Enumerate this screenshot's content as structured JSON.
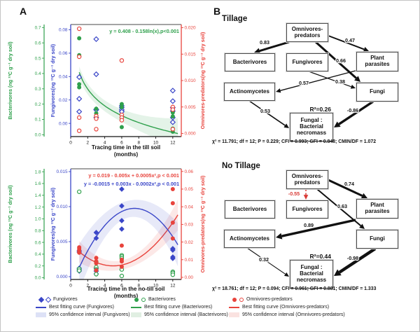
{
  "panel_a": {
    "label": "A"
  },
  "panel_b": {
    "label": "B",
    "diagrams": [
      {
        "id": "tillage",
        "title": "Tillage",
        "r2": "R²=0.26",
        "fit": "χ² = 11.791; df = 12; P = 0.229; CFI = 0.993; GFI = 0.848; CMIN/DF = 1.072",
        "nodes": {
          "omnivores_predators": {
            "label": "Omnivores-\npredators"
          },
          "bacterivores": {
            "label": "Bacterivores"
          },
          "fungivores": {
            "label": "Fungivores"
          },
          "plant_parasites": {
            "label": "Plant\nparasites"
          },
          "actinomycetes": {
            "label": "Actinomycetes"
          },
          "fungi": {
            "label": "Fungi"
          },
          "necromass": {
            "label": "Fungal :\nBacterial\nnecromass"
          }
        },
        "edges": [
          {
            "from": "omnivores_predators",
            "to": "bacterivores",
            "label": "0.83",
            "w": 3,
            "color": "#111111",
            "dashed": false
          },
          {
            "from": "omnivores_predators",
            "to": "plant_parasites",
            "label": "0.47",
            "w": 2,
            "color": "#111111",
            "dashed": false
          },
          {
            "from": "omnivores_predators",
            "to": "fungi",
            "label": "0.66",
            "w": 3,
            "color": "#111111",
            "dashed": false
          },
          {
            "from": "fungivores",
            "to": "fungi",
            "label": "0.38",
            "w": 1.2,
            "color": "#111111",
            "dashed": false
          },
          {
            "from": "plant_parasites",
            "to": "actinomycetes",
            "label": "0.57",
            "w": 1.4,
            "color": "#111111",
            "dashed": false
          },
          {
            "from": "actinomycetes",
            "to": "necromass",
            "label": "0.53",
            "w": 1.6,
            "color": "#111111",
            "dashed": false
          },
          {
            "from": "fungi",
            "to": "necromass",
            "label": "-0.86",
            "w": 3.4,
            "color": "#111111",
            "dashed": false
          }
        ]
      },
      {
        "id": "notillage",
        "title": "No Tillage",
        "r2": "R²=0.44",
        "fit": "χ² = 18.761; df = 12; P = 0.094; CFI = 0.961; GFI = 0.881; CMIN/DF = 1.333",
        "nodes": {
          "omnivores_predators": {
            "label": "Omnivores-\npredators"
          },
          "bacterivores": {
            "label": "Bacterivores"
          },
          "fungivores": {
            "label": "Fungivores"
          },
          "plant_parasites": {
            "label": "Plant\nparasites"
          },
          "actinomycetes": {
            "label": "Actinomycetes"
          },
          "fungi": {
            "label": "Fungi"
          },
          "necromass": {
            "label": "Fungal :\nBacterial\nnecromass"
          }
        },
        "edges": [
          {
            "from": "omnivores_predators",
            "to": "fungivores",
            "label": "-0.55",
            "w": 1.5,
            "color": "#d93a35",
            "dashed": true
          },
          {
            "from": "omnivores_predators",
            "to": "plant_parasites",
            "label": "0.74",
            "w": 3,
            "color": "#111111",
            "dashed": false
          },
          {
            "from": "omnivores_predators",
            "to": "fungi",
            "label": "0.63",
            "w": 2,
            "color": "#111111",
            "dashed": false
          },
          {
            "from": "plant_parasites",
            "to": "actinomycetes",
            "label": "0.89",
            "w": 3.4,
            "color": "#111111",
            "dashed": false
          },
          {
            "from": "actinomycetes",
            "to": "necromass",
            "label": "0.32",
            "w": 1.1,
            "color": "#111111",
            "dashed": false
          },
          {
            "from": "fungi",
            "to": "necromass",
            "label": "-0.98",
            "w": 4.4,
            "color": "#111111",
            "dashed": false
          }
        ]
      }
    ]
  },
  "chart_data": [
    {
      "type": "scatter",
      "equations": [
        {
          "text": "y = 0.408 - 0.158ln(x),p<0.001",
          "color": "#2fa04c"
        }
      ],
      "xlabel": "Tracing time in the till soil",
      "months_label": "(months)",
      "x_ticks": [
        "0",
        "2",
        "4",
        "6",
        "8",
        "10",
        "12"
      ],
      "x_range": [
        0,
        13
      ],
      "axes": {
        "bacterivores": {
          "label": "Bacterivores (ng ¹³C g⁻¹ dry soil)",
          "color": "#2fa04c",
          "ticks": [
            "0.0",
            "0.1",
            "0.2",
            "0.3",
            "0.4",
            "0.5",
            "0.6",
            "0.7"
          ],
          "range": [
            -0.012,
            0.72
          ]
        },
        "fungivores": {
          "label": "Fungivores(ng ¹³C g⁻¹ dry soil)",
          "color": "#3a46c8",
          "ticks": [
            "0.00",
            "0.02",
            "0.04",
            "0.06",
            "0.08"
          ],
          "range": [
            -0.0113,
            0.0845
          ]
        },
        "omnivores": {
          "label": "Omnivores-predators(ng ¹³C g⁻¹ dry soil)",
          "color": "#e8433c",
          "ticks": [
            "0.000",
            "0.005",
            "0.010",
            "0.015",
            "0.020"
          ],
          "range": [
            -0.0006,
            0.0206
          ]
        }
      },
      "series": [
        {
          "name": "Fungivores",
          "axis": "fungivores",
          "marker": "diamond",
          "fill": "open",
          "color": "#3a46c8",
          "points": [
            [
              1,
              0.0395
            ],
            [
              1,
              0.021
            ],
            [
              1,
              0.01
            ],
            [
              3,
              0.072
            ],
            [
              3,
              0.042
            ],
            [
              3,
              0.012
            ],
            [
              3,
              0.0115
            ],
            [
              3,
              0.005
            ],
            [
              6,
              0.015
            ],
            [
              6,
              0.0135
            ],
            [
              6,
              0.0115
            ],
            [
              6,
              0.01
            ],
            [
              12,
              0.028
            ],
            [
              12,
              0.019
            ],
            [
              12,
              0.0135
            ],
            [
              12,
              0.0105
            ],
            [
              12,
              0.005
            ],
            [
              12,
              0.001
            ]
          ]
        },
        {
          "name": "Bacterivores",
          "axis": "bacterivores",
          "marker": "circle",
          "fill": "filled",
          "color": "#2fa04c",
          "points": [
            [
              1,
              0.63
            ],
            [
              1,
              0.52
            ],
            [
              1,
              0.51
            ],
            [
              1,
              0.33
            ],
            [
              1,
              0.31
            ],
            [
              3,
              0.17
            ],
            [
              3,
              0.14
            ],
            [
              3,
              0.12
            ],
            [
              6,
              0.2
            ],
            [
              6,
              0.18
            ],
            [
              6,
              0.11
            ],
            [
              6,
              0.05
            ],
            [
              12,
              0.145
            ],
            [
              12,
              0.12
            ],
            [
              12,
              0.04
            ],
            [
              12,
              0.02
            ]
          ]
        },
        {
          "name": "Omnivores-predators",
          "axis": "omnivores",
          "marker": "circle",
          "fill": "open",
          "color": "#e8433c",
          "points": [
            [
              1,
              0.0198
            ],
            [
              1,
              0.0145
            ],
            [
              1,
              0.003
            ],
            [
              1,
              0.0005
            ],
            [
              3,
              0.0033
            ],
            [
              3,
              0.0028
            ],
            [
              3,
              0.0008
            ],
            [
              6,
              0.0138
            ],
            [
              6,
              0.0035
            ],
            [
              6,
              0.003
            ],
            [
              6,
              0.0025
            ],
            [
              12,
              0.005
            ],
            [
              12,
              0.0045
            ],
            [
              12,
              0.0008
            ]
          ]
        }
      ],
      "curves": [
        {
          "axis": "bacterivores",
          "type": "log",
          "a": 0.408,
          "b": -0.158,
          "c": 0,
          "color": "#2fa04c",
          "band_color": "rgba(47,160,76,0.13)",
          "bw": [
            0.035,
            0.0007,
            3
          ]
        }
      ]
    },
    {
      "type": "scatter",
      "equations": [
        {
          "text": "y = 0.019 - 0.005x + 0.0005x²,p < 0.001",
          "color": "#e8433c"
        },
        {
          "text": "y = -0.0015 + 0.003x - 0.0002x²,p < 0.001",
          "color": "#3a46c8"
        }
      ],
      "xlabel": "Tracing time in the no-till soil",
      "months_label": "(months)",
      "x_ticks": [
        "0",
        "2",
        "4",
        "6",
        "8",
        "10",
        "12"
      ],
      "x_range": [
        0,
        13
      ],
      "axes": {
        "bacterivores": {
          "label": "Bacterivores (ng ¹³C g⁻¹ dry soil)",
          "color": "#2fa04c",
          "ticks": [
            "0.0",
            "0.2",
            "0.4",
            "0.6",
            "0.8",
            "1.0",
            "1.2",
            "1.4",
            "1.6",
            "1.8"
          ],
          "range": [
            -0.03,
            1.85
          ]
        },
        "fungivores": {
          "label": "Fungivores(ng ¹³C g⁻¹ dry soil)",
          "color": "#3a46c8",
          "ticks": [
            "0.000",
            "0.005",
            "0.010",
            "0.015"
          ],
          "range": [
            -0.0004,
            0.0154
          ]
        },
        "omnivores": {
          "label": "Omnivores-predators(ng ¹³C g⁻¹ dry soil)",
          "color": "#e8433c",
          "ticks": [
            "0.00",
            "0.01",
            "0.02",
            "0.03",
            "0.04",
            "0.05",
            "0.06"
          ],
          "range": [
            -0.0012,
            0.0615
          ]
        }
      },
      "series": [
        {
          "name": "Fungivores",
          "axis": "fungivores",
          "marker": "diamond",
          "fill": "filled",
          "color": "#3a46c8",
          "points": [
            [
              1,
              0.0037
            ],
            [
              1,
              0.0035
            ],
            [
              1,
              0.0012
            ],
            [
              1,
              0.001
            ],
            [
              1,
              0.0008
            ],
            [
              3,
              0.0063
            ],
            [
              3,
              0.0055
            ],
            [
              3,
              0.0012
            ],
            [
              3,
              0.0008
            ],
            [
              3,
              0.0004
            ],
            [
              6,
              0.0125
            ],
            [
              6,
              0.0101
            ],
            [
              6,
              0.008
            ],
            [
              6,
              0.0068
            ],
            [
              12,
              0.004
            ],
            [
              12,
              0.0038
            ],
            [
              12,
              0.0028
            ],
            [
              12,
              0.0026
            ]
          ]
        },
        {
          "name": "Bacterivores",
          "axis": "bacterivores",
          "marker": "circle",
          "fill": "open",
          "color": "#2fa04c",
          "points": [
            [
              1,
              1.46
            ],
            [
              1,
              0.15
            ],
            [
              1,
              0.12
            ],
            [
              3,
              0.27
            ],
            [
              3,
              0.18
            ],
            [
              3,
              0.14
            ],
            [
              3,
              0.06
            ],
            [
              6,
              0.38
            ],
            [
              6,
              0.36
            ],
            [
              6,
              0.33
            ],
            [
              6,
              0.14
            ],
            [
              6,
              0.03
            ],
            [
              12,
              0.1
            ],
            [
              12,
              0.08
            ],
            [
              12,
              0.05
            ]
          ]
        },
        {
          "name": "Omnivores-predators",
          "axis": "omnivores",
          "marker": "circle",
          "fill": "filled",
          "color": "#e8433c",
          "points": [
            [
              1,
              0.017
            ],
            [
              1,
              0.016
            ],
            [
              1,
              0.015
            ],
            [
              1,
              0.014
            ],
            [
              3,
              0.011
            ],
            [
              3,
              0.009
            ],
            [
              3,
              0.008
            ],
            [
              3,
              0.004
            ],
            [
              6,
              0.018
            ],
            [
              6,
              0.01
            ],
            [
              6,
              0.009
            ],
            [
              6,
              0.006
            ],
            [
              12,
              0.05
            ],
            [
              12,
              0.042
            ],
            [
              12,
              0.031
            ],
            [
              12,
              0.022
            ]
          ]
        }
      ],
      "curves": [
        {
          "axis": "omnivores",
          "type": "quad",
          "a": 0.019,
          "b": -0.005,
          "c": 0.0005,
          "color": "#e8433c",
          "band_color": "rgba(232,67,60,0.12)",
          "bw": [
            0.0026,
            0.00014,
            6
          ]
        },
        {
          "axis": "fungivores",
          "type": "quad",
          "a": -0.0015,
          "b": 0.003,
          "c": -0.0002,
          "color": "#3a46c8",
          "band_color": "rgba(58,70,200,0.12)",
          "bw": [
            0.0012,
            6e-05,
            7
          ]
        }
      ]
    }
  ],
  "legend": {
    "columns": [
      {
        "name": "Fungivores",
        "marker": "diamond",
        "color": "#3a46c8",
        "band": "#dde1f6",
        "curve_label": "Best fitting curve (Fungivores)",
        "ci_label": "95% confidence interval (Fungivores)"
      },
      {
        "name": "Bacterivores",
        "marker": "circle",
        "color": "#2fa04c",
        "band": "#e0efe2",
        "curve_label": "Best fitting curve (Bacterivores)",
        "ci_label": "95% confidence interval (Bacterivores)"
      },
      {
        "name": "Omnivores-predators",
        "marker": "circle",
        "color": "#e8433c",
        "band": "#fae2e0",
        "curve_label": "Best fitting curve (Omnivores-predators)",
        "ci_label": "95% confidence interval (Omnivores-predators)"
      }
    ]
  }
}
